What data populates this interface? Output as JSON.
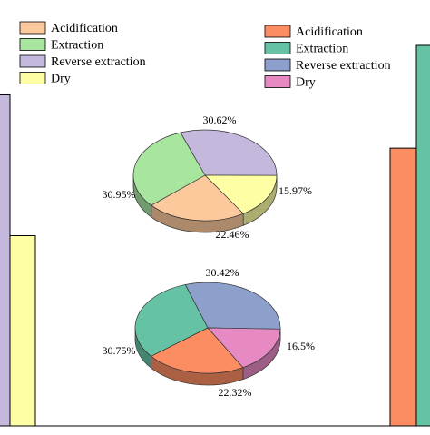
{
  "chart_data": [
    {
      "type": "pie",
      "title": "",
      "legend": {
        "placement": "top-left",
        "entries": [
          "Acidification",
          "Extraction",
          "Reverse extraction",
          "Dry"
        ]
      },
      "series": [
        {
          "label": "Acidification",
          "value": 22.46,
          "display": "22.46%",
          "color": "#fcc99c"
        },
        {
          "label": "Extraction",
          "value": 30.95,
          "display": "30.95%",
          "color": "#a8e6a0"
        },
        {
          "label": "Reverse extraction",
          "value": 30.62,
          "display": "30.62%",
          "color": "#c5b8dd"
        },
        {
          "label": "Dry",
          "value": 15.97,
          "display": "15.97%",
          "color": "#fefea4"
        }
      ]
    },
    {
      "type": "pie",
      "title": "",
      "legend": {
        "placement": "top-right",
        "entries": [
          "Acidification",
          "Extraction",
          "Reverse extraction",
          "Dry"
        ]
      },
      "series": [
        {
          "label": "Acidification",
          "value": 22.32,
          "display": "22.32%",
          "color": "#fc8d62"
        },
        {
          "label": "Extraction",
          "value": 30.75,
          "display": "30.75%",
          "color": "#66c2a5"
        },
        {
          "label": "Reverse extraction",
          "value": 30.42,
          "display": "30.42%",
          "color": "#8da0cb"
        },
        {
          "label": "Dry",
          "value": 16.5,
          "display": "16.5%",
          "color": "#e78ac3"
        }
      ]
    },
    {
      "type": "bar",
      "title": "",
      "note": "partially visible bars at left edge",
      "bars": [
        {
          "color": "#c5b8dd",
          "fraction_of_visible_height": 0.87
        },
        {
          "color": "#fefea4",
          "fraction_of_visible_height": 0.5
        }
      ]
    },
    {
      "type": "bar",
      "title": "",
      "note": "partially visible bars at right edge",
      "bars": [
        {
          "color": "#fc8d62",
          "fraction_of_visible_height": 0.73
        },
        {
          "color": "#66c2a5",
          "fraction_of_visible_height": 1.0
        }
      ]
    }
  ]
}
